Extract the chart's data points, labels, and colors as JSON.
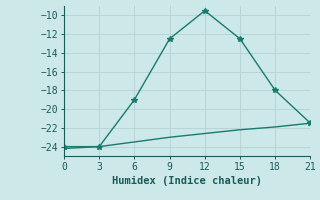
{
  "line1_x": [
    0,
    3,
    6,
    9,
    12,
    15,
    18,
    21
  ],
  "line1_y": [
    -24,
    -24,
    -19,
    -12.5,
    -9.5,
    -12.5,
    -18,
    -21.5
  ],
  "line2_x": [
    0,
    3,
    6,
    9,
    12,
    15,
    18,
    21
  ],
  "line2_y": [
    -24.2,
    -24,
    -23.5,
    -23.0,
    -22.6,
    -22.2,
    -21.9,
    -21.5
  ],
  "line_color": "#1a7a6e",
  "bg_color": "#cce8e8",
  "grid_color": "#b8d4d4",
  "xlabel": "Humidex (Indice chaleur)",
  "xticks": [
    0,
    3,
    6,
    9,
    12,
    15,
    18,
    21
  ],
  "yticks": [
    -10,
    -12,
    -14,
    -16,
    -18,
    -20,
    -22,
    -24
  ],
  "xlim": [
    0,
    21
  ],
  "ylim": [
    -25,
    -9
  ],
  "font_color": "#1a5a5a",
  "marker": "*",
  "markersize": 4,
  "linewidth": 1.0,
  "tick_fontsize": 7,
  "xlabel_fontsize": 7.5
}
